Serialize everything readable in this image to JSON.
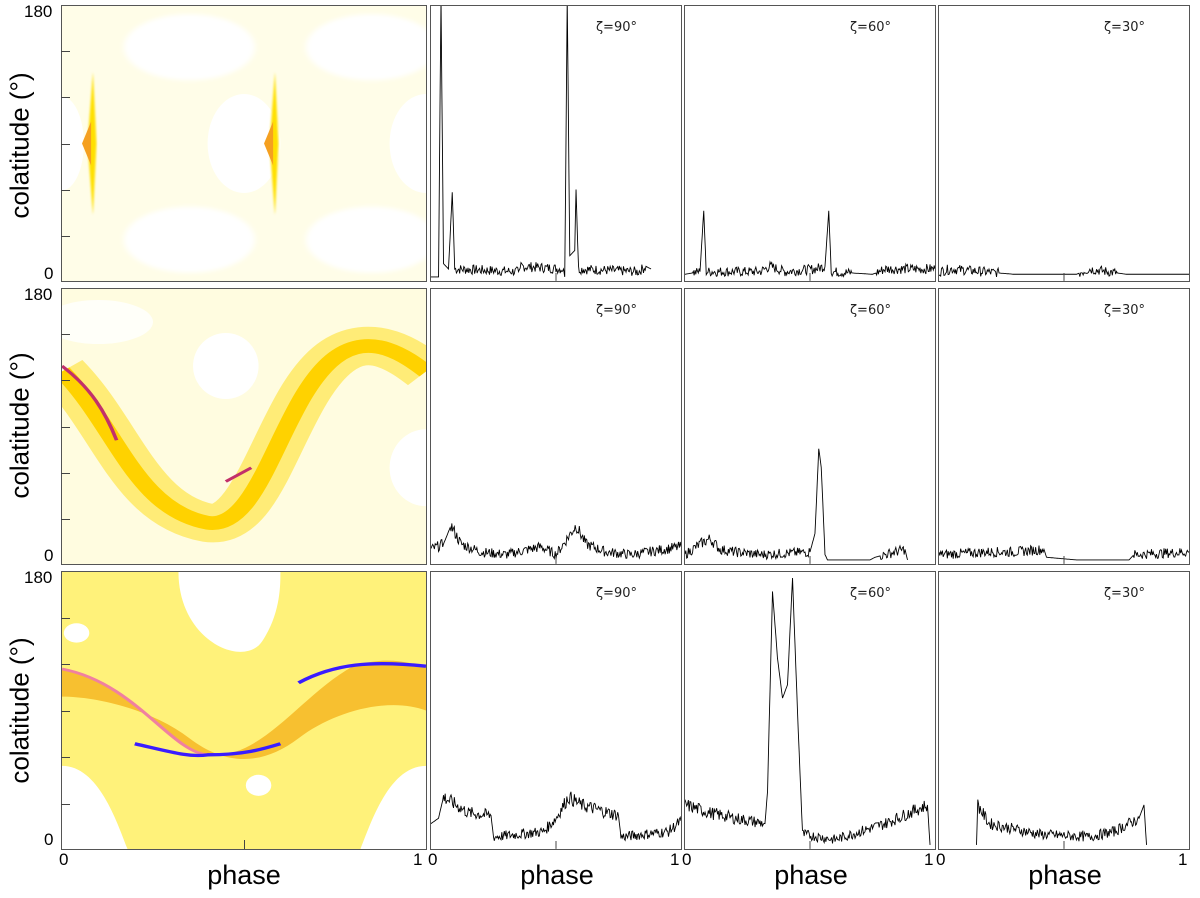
{
  "axes": {
    "ylabel": "colatitude (°)",
    "xlabel": "phase",
    "ytick_max": "180",
    "ytick_min": "0",
    "xtick_min": "0",
    "xtick_max": "1"
  },
  "colors": {
    "map_low": "#ffffe0",
    "map_mid": "#ffee00",
    "map_high": "#f5a623",
    "map_peak": "#3a1cff",
    "line": "#000000"
  },
  "chart_data": [
    {
      "type": "heatmap",
      "row": 1,
      "xlabel": "phase",
      "ylabel": "colatitude (°)",
      "xlim": [
        0,
        1
      ],
      "ylim": [
        0,
        180
      ]
    },
    {
      "type": "heatmap",
      "row": 2,
      "xlabel": "phase",
      "ylabel": "colatitude (°)",
      "xlim": [
        0,
        1
      ],
      "ylim": [
        0,
        180
      ]
    },
    {
      "type": "heatmap",
      "row": 3,
      "xlabel": "phase",
      "ylabel": "colatitude (°)",
      "xlim": [
        0,
        1
      ],
      "ylim": [
        0,
        180
      ]
    },
    {
      "type": "line",
      "row": 1,
      "label": "ζ=90°",
      "xlim": [
        0,
        1
      ],
      "points": [
        [
          0,
          0
        ],
        [
          0.03,
          0
        ],
        [
          0.04,
          1.05
        ],
        [
          0.05,
          0.05
        ],
        [
          0.07,
          0.03
        ],
        [
          0.085,
          0.32
        ],
        [
          0.095,
          0.03
        ],
        [
          0.35,
          0.02
        ],
        [
          0.36,
          0.04
        ],
        [
          0.53,
          0.03
        ],
        [
          0.535,
          0
        ],
        [
          0.545,
          1.05
        ],
        [
          0.555,
          0.08
        ],
        [
          0.575,
          0.1
        ],
        [
          0.58,
          0.33
        ],
        [
          0.59,
          0.03
        ],
        [
          0.83,
          0.02
        ],
        [
          0.86,
          0.04
        ],
        [
          0.88,
          0.03
        ]
      ]
    },
    {
      "type": "line",
      "row": 1,
      "label": "ζ=60°",
      "xlim": [
        0,
        1
      ],
      "points": [
        [
          0,
          0.01
        ],
        [
          0.06,
          0.02
        ],
        [
          0.075,
          0.25
        ],
        [
          0.085,
          0.02
        ],
        [
          0.3,
          0.02
        ],
        [
          0.34,
          0.04
        ],
        [
          0.4,
          0.02
        ],
        [
          0.52,
          0.03
        ],
        [
          0.56,
          0.04
        ],
        [
          0.575,
          0.25
        ],
        [
          0.585,
          0.02
        ],
        [
          0.75,
          0.01
        ],
        [
          0.8,
          0.03
        ],
        [
          1,
          0.03
        ]
      ]
    },
    {
      "type": "line",
      "row": 1,
      "label": "ζ=30°",
      "xlim": [
        0,
        1
      ],
      "points": [
        [
          0,
          0.02
        ],
        [
          0.05,
          0.03
        ],
        [
          0.3,
          0.01
        ],
        [
          0.55,
          0.01
        ],
        [
          0.6,
          0.03
        ],
        [
          0.75,
          0.01
        ],
        [
          1,
          0.01
        ]
      ]
    },
    {
      "type": "line",
      "row": 2,
      "label": "ζ=90°",
      "xlim": [
        0,
        1
      ],
      "points": [
        [
          0,
          0.04
        ],
        [
          0.05,
          0.06
        ],
        [
          0.08,
          0.13
        ],
        [
          0.12,
          0.06
        ],
        [
          0.2,
          0.03
        ],
        [
          0.3,
          0.02
        ],
        [
          0.44,
          0.05
        ],
        [
          0.5,
          0.02
        ],
        [
          0.53,
          0.06
        ],
        [
          0.58,
          0.13
        ],
        [
          0.62,
          0.06
        ],
        [
          0.7,
          0.03
        ],
        [
          0.8,
          0.02
        ],
        [
          1,
          0.05
        ]
      ]
    },
    {
      "type": "line",
      "row": 2,
      "label": "ζ=60°",
      "xlim": [
        0,
        1
      ],
      "points": [
        [
          0,
          0.02
        ],
        [
          0.06,
          0.06
        ],
        [
          0.1,
          0.08
        ],
        [
          0.14,
          0.04
        ],
        [
          0.2,
          0.03
        ],
        [
          0.3,
          0.02
        ],
        [
          0.5,
          0.03
        ],
        [
          0.52,
          0.1
        ],
        [
          0.535,
          0.42
        ],
        [
          0.545,
          0.35
        ],
        [
          0.56,
          0.02
        ],
        [
          0.57,
          0
        ],
        [
          0.74,
          0
        ],
        [
          0.76,
          0.01
        ],
        [
          0.88,
          0.04
        ],
        [
          0.89,
          0
        ]
      ]
    },
    {
      "type": "line",
      "row": 2,
      "label": "ζ=30°",
      "xlim": [
        0,
        1
      ],
      "points": [
        [
          0,
          0.02
        ],
        [
          0.2,
          0.03
        ],
        [
          0.3,
          0.03
        ],
        [
          0.42,
          0.04
        ],
        [
          0.43,
          0.01
        ],
        [
          0.55,
          0
        ],
        [
          0.76,
          0
        ],
        [
          0.78,
          0.02
        ],
        [
          1,
          0.03
        ]
      ]
    },
    {
      "type": "line",
      "row": 3,
      "label": "ζ=90°",
      "xlim": [
        0,
        1
      ],
      "points": [
        [
          0,
          0.08
        ],
        [
          0.03,
          0.1
        ],
        [
          0.05,
          0.18
        ],
        [
          0.1,
          0.15
        ],
        [
          0.15,
          0.12
        ],
        [
          0.24,
          0.11
        ],
        [
          0.25,
          0.03
        ],
        [
          0.45,
          0.05
        ],
        [
          0.5,
          0.1
        ],
        [
          0.55,
          0.18
        ],
        [
          0.6,
          0.15
        ],
        [
          0.75,
          0.11
        ],
        [
          0.76,
          0.03
        ],
        [
          0.95,
          0.05
        ],
        [
          1,
          0.09
        ]
      ]
    },
    {
      "type": "line",
      "row": 3,
      "label": "ζ=60°",
      "xlim": [
        0,
        1
      ],
      "points": [
        [
          0,
          0.15
        ],
        [
          0.1,
          0.12
        ],
        [
          0.2,
          0.1
        ],
        [
          0.32,
          0.08
        ],
        [
          0.33,
          0.2
        ],
        [
          0.35,
          0.95
        ],
        [
          0.37,
          0.7
        ],
        [
          0.39,
          0.55
        ],
        [
          0.41,
          0.6
        ],
        [
          0.43,
          1.0
        ],
        [
          0.45,
          0.5
        ],
        [
          0.47,
          0.04
        ],
        [
          0.6,
          0.02
        ],
        [
          0.8,
          0.08
        ],
        [
          0.97,
          0.15
        ],
        [
          0.98,
          0
        ]
      ]
    },
    {
      "type": "line",
      "row": 3,
      "label": "ζ=30°",
      "xlim": [
        0,
        1
      ],
      "points": [
        [
          0.15,
          0
        ],
        [
          0.155,
          0.15
        ],
        [
          0.2,
          0.08
        ],
        [
          0.3,
          0.06
        ],
        [
          0.4,
          0.04
        ],
        [
          0.6,
          0.03
        ],
        [
          0.7,
          0.05
        ],
        [
          0.8,
          0.1
        ],
        [
          0.82,
          0.15
        ],
        [
          0.83,
          0
        ]
      ]
    }
  ]
}
